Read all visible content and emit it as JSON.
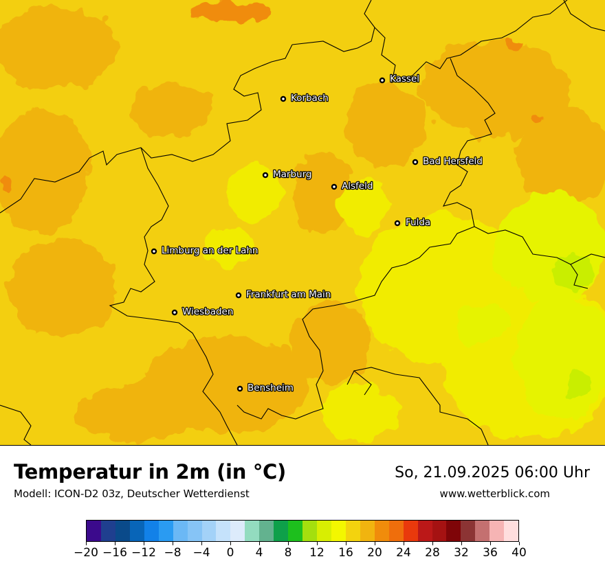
{
  "title": "Temperatur in 2m (in °C)",
  "model": "Modell: ICON-D2 03z, Deutscher Wetterdienst",
  "datetime": "So, 21.09.2025 06:00 Uhr",
  "website": "www.wetterblick.com",
  "cities": [
    {
      "name": "Kassel"
    },
    {
      "name": "Korbach"
    },
    {
      "name": "Bad Hersfeld"
    },
    {
      "name": "Marburg"
    },
    {
      "name": "Alsfeld"
    },
    {
      "name": "Fulda"
    },
    {
      "name": "Limburg an der Lahn"
    },
    {
      "name": "Frankfurt am Main"
    },
    {
      "name": "Wiesbaden"
    },
    {
      "name": "Bensheim"
    }
  ],
  "colorbar": {
    "min": -20,
    "max": 40,
    "step": 2,
    "tick_labels": [
      "−20",
      "−16",
      "−12",
      "−8",
      "−4",
      "0",
      "4",
      "8",
      "12",
      "16",
      "20",
      "24",
      "28",
      "32",
      "36",
      "40"
    ],
    "colors": [
      "#3b0a8c",
      "#1f3f8f",
      "#0a4a8a",
      "#0865b8",
      "#1281e8",
      "#2a9bf2",
      "#6bb8f5",
      "#86c4f6",
      "#a3d2f8",
      "#c5e2fb",
      "#ddebfb",
      "#93dcbf",
      "#63b28f",
      "#0ea04a",
      "#1dbf1d",
      "#a4df0e",
      "#d8ee02",
      "#f3f700",
      "#f3d30e",
      "#f1b40f",
      "#f08c0b",
      "#ef6e0c",
      "#e9390c",
      "#bb1818",
      "#a51212",
      "#7f0508",
      "#8c3434",
      "#c47070",
      "#f6b4b4",
      "#ffdede"
    ]
  },
  "map_colors": {
    "base": "#f3cf10",
    "warm": "#f0b40e",
    "hot": "#f08c0b",
    "cool": "#f1ec00",
    "cooler": "#e6f300",
    "coolest": "#c9ee02",
    "border": "#000000"
  }
}
